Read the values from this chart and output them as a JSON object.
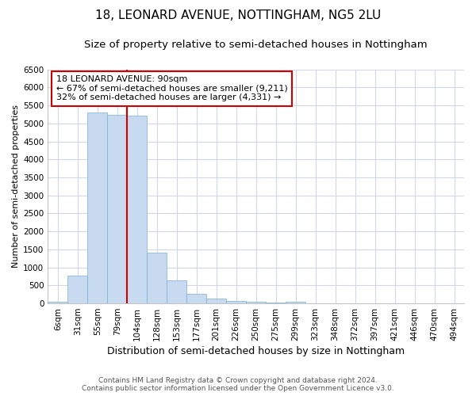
{
  "title1": "18, LEONARD AVENUE, NOTTINGHAM, NG5 2LU",
  "title2": "Size of property relative to semi-detached houses in Nottingham",
  "xlabel": "Distribution of semi-detached houses by size in Nottingham",
  "ylabel": "Number of semi-detached properties",
  "categories": [
    "6sqm",
    "31sqm",
    "55sqm",
    "79sqm",
    "104sqm",
    "128sqm",
    "153sqm",
    "177sqm",
    "201sqm",
    "226sqm",
    "250sqm",
    "275sqm",
    "299sqm",
    "323sqm",
    "348sqm",
    "372sqm",
    "397sqm",
    "421sqm",
    "446sqm",
    "470sqm",
    "494sqm"
  ],
  "values": [
    50,
    780,
    5300,
    5250,
    5220,
    1420,
    630,
    260,
    130,
    75,
    50,
    30,
    55,
    10,
    5,
    5,
    2,
    1,
    1,
    1,
    1
  ],
  "bar_color": "#c8daf0",
  "bar_edge_color": "#7aaed6",
  "vline_color": "#cc0000",
  "annotation_title": "18 LEONARD AVENUE: 90sqm",
  "annotation_line1": "← 67% of semi-detached houses are smaller (9,211)",
  "annotation_line2": "32% of semi-detached houses are larger (4,331) →",
  "annotation_box_color": "#ffffff",
  "annotation_box_edge": "#cc0000",
  "ylim": [
    0,
    6500
  ],
  "yticks": [
    0,
    500,
    1000,
    1500,
    2000,
    2500,
    3000,
    3500,
    4000,
    4500,
    5000,
    5500,
    6000,
    6500
  ],
  "footer1": "Contains HM Land Registry data © Crown copyright and database right 2024.",
  "footer2": "Contains public sector information licensed under the Open Government Licence v3.0.",
  "plot_bg_color": "#ffffff",
  "fig_bg_color": "#ffffff",
  "grid_color": "#d0d8e8",
  "title_fontsize": 11,
  "subtitle_fontsize": 9.5,
  "ylabel_fontsize": 8,
  "xlabel_fontsize": 9,
  "tick_fontsize": 7.5,
  "footer_fontsize": 6.5
}
